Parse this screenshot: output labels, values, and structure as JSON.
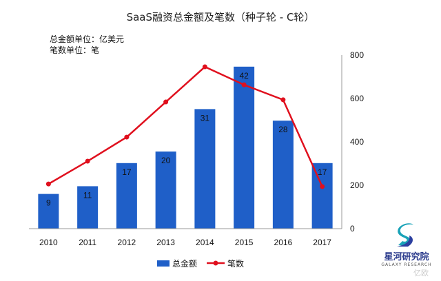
{
  "chart_data": {
    "type": "bar+line",
    "title": "SaaS融资总金额及笔数（种子轮 - C轮）",
    "notes": [
      "总金额单位：亿美元",
      "笔数单位：笔"
    ],
    "categories": [
      "2010",
      "2011",
      "2012",
      "2013",
      "2014",
      "2015",
      "2016",
      "2017"
    ],
    "series": [
      {
        "name": "总金额",
        "type": "bar",
        "axis": "left-hidden",
        "color": "#1f5fc8",
        "values": [
          9,
          11,
          17,
          20,
          31,
          42,
          28,
          17
        ],
        "data_labels": true
      },
      {
        "name": "笔数",
        "type": "line",
        "axis": "right",
        "color": "#e0101e",
        "values": [
          206,
          311,
          422,
          584,
          746,
          663,
          594,
          194
        ]
      }
    ],
    "right_axis": {
      "range": [
        0,
        800
      ],
      "ticks": [
        "0",
        "200",
        "400",
        "600",
        "800"
      ]
    },
    "left_axis_hidden_range": [
      0,
      45
    ],
    "grid": false,
    "legend": "bottom"
  },
  "watermark": {
    "logo_text": "星河研究院",
    "logo_subtext": "GALAXY RESEARCH",
    "corner_mark": "亿欧"
  }
}
